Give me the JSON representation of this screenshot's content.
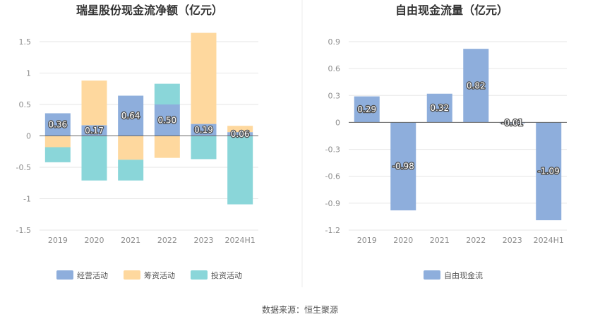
{
  "chart_data": [
    {
      "type": "bar",
      "stacked": true,
      "title": "瑞星股份现金流净额（亿元）",
      "categories": [
        "2019",
        "2020",
        "2021",
        "2022",
        "2023",
        "2024H1"
      ],
      "ylim": [
        -1.5,
        1.5
      ],
      "yticks": [
        "1.5",
        "1",
        "0.5",
        "0",
        "-0.5",
        "-1",
        "-1.5"
      ],
      "ytick_values": [
        1.5,
        1,
        0.5,
        0,
        -0.5,
        -1,
        -1.5
      ],
      "grid": true,
      "legend_position": "bottom",
      "series": [
        {
          "name": "经营活动",
          "color": "#8eaedc",
          "values": [
            0.36,
            0.17,
            0.64,
            0.5,
            0.19,
            0.06
          ]
        },
        {
          "name": "筹资活动",
          "color": "#fed89e",
          "values": [
            -0.18,
            0.71,
            -0.38,
            -0.35,
            1.45,
            0.1
          ]
        },
        {
          "name": "投资活动",
          "color": "#8ad6d9",
          "values": [
            -0.24,
            -0.71,
            -0.33,
            0.33,
            -0.37,
            -1.09
          ]
        }
      ],
      "data_labels": [
        "0.36",
        "0.17",
        "0.64",
        "0.50",
        "0.19",
        "0.06"
      ]
    },
    {
      "type": "bar",
      "title": "自由现金流量（亿元）",
      "categories": [
        "2019",
        "2020",
        "2021",
        "2022",
        "2023",
        "2024H1"
      ],
      "ylim": [
        -1.2,
        0.9
      ],
      "yticks": [
        "0.9",
        "0.6",
        "0.3",
        "0",
        "-0.3",
        "-0.6",
        "-0.9",
        "-1.2"
      ],
      "ytick_values": [
        0.9,
        0.6,
        0.3,
        0,
        -0.3,
        -0.6,
        -0.9,
        -1.2
      ],
      "grid": true,
      "legend_position": "bottom",
      "series": [
        {
          "name": "自由现金流",
          "color": "#8eaedc",
          "values": [
            0.29,
            -0.98,
            0.32,
            0.82,
            -0.01,
            -1.09
          ]
        }
      ],
      "data_labels": [
        "0.29",
        "-0.98",
        "0.32",
        "0.82",
        "-0.01",
        "-1.09"
      ]
    }
  ],
  "footer": {
    "source": "数据来源：恒生聚源"
  }
}
